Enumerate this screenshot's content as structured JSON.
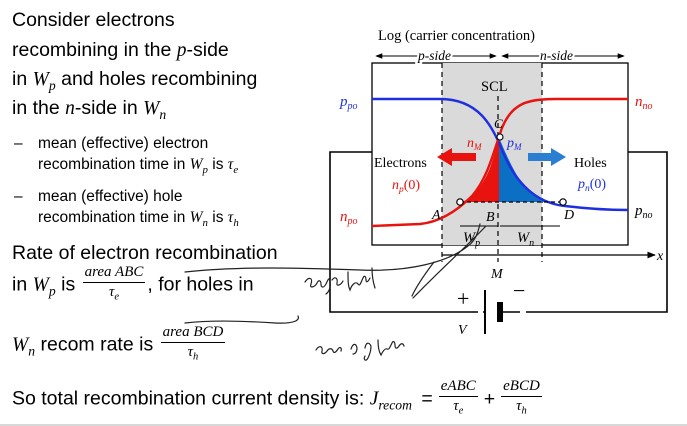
{
  "left_text": {
    "para1_line1": "Consider electrons",
    "para1_line2": "recombining in the ",
    "p_var": "p",
    "para1_line2b": "-side",
    "para1_line3": "in ",
    "w": "W",
    "sub_p": "p",
    "sub_n": "n",
    "para1_line3b": " and holes recombining",
    "para1_line4": "in the ",
    "n_var": "n",
    "para1_line4b": "-side in ",
    "bullet_dash": "–",
    "bullet1_line1": "mean (effective) electron",
    "bullet1_line2": "recombination time in ",
    "bullet1_is": " is ",
    "tau": "τ",
    "sub_e": "e",
    "sub_h": "h",
    "bullet2_line1": "mean (effective) hole",
    "bullet2_line2": "recombination time in ",
    "rate_line1": "Rate of electron recombination",
    "rate_line2a": "in ",
    "rate_line2b": " is ",
    "frac1_num": "area ABC",
    "rate_line2c": ", for holes in",
    "wn_line_a": " recom rate is ",
    "frac2_num": "area BCD",
    "total_text": "So total recombination current density is: ",
    "j": "J",
    "sub_recom": "recom",
    "equals": "=",
    "plus": "+",
    "frac3_num": "eABC",
    "frac4_num": "eBCD"
  },
  "diagram": {
    "y_axis_label": "Log (carrier concentration)",
    "p_side_label": "p-side",
    "n_side_label": "n-side",
    "scl_label": "SCL",
    "c_label": "C",
    "nm_label": "n",
    "nm_sub": "M",
    "pm_label": "p",
    "pm_sub": "M",
    "ppo_label": "p",
    "ppo_sub": "po",
    "nno_label": "n",
    "nno_sub": "no",
    "npo_label": "n",
    "npo_sub": "po",
    "pno_label": "p",
    "pno_sub": "no",
    "electrons_label": "Electrons",
    "holes_label": "Holes",
    "np0_label": "n",
    "np0_sub": "p",
    "np0_arg": "(0)",
    "pn0_label": "p",
    "pn0_sub": "n",
    "pn0_arg": "(0)",
    "a_label": "A",
    "b_label": "B",
    "d_label": "D",
    "wp_label": "W",
    "wp_sub": "p",
    "wn_label": "W",
    "wn_sub": "n",
    "x_label": "x",
    "m_label": "M",
    "v_label": "V",
    "battery_plus": "+",
    "battery_minus": "−",
    "colors": {
      "electron_red": "#e8120e",
      "hole_blue": "#0b6fc4",
      "curve_blue": "#1f2fe0",
      "scl_gray": "#dadada"
    }
  }
}
